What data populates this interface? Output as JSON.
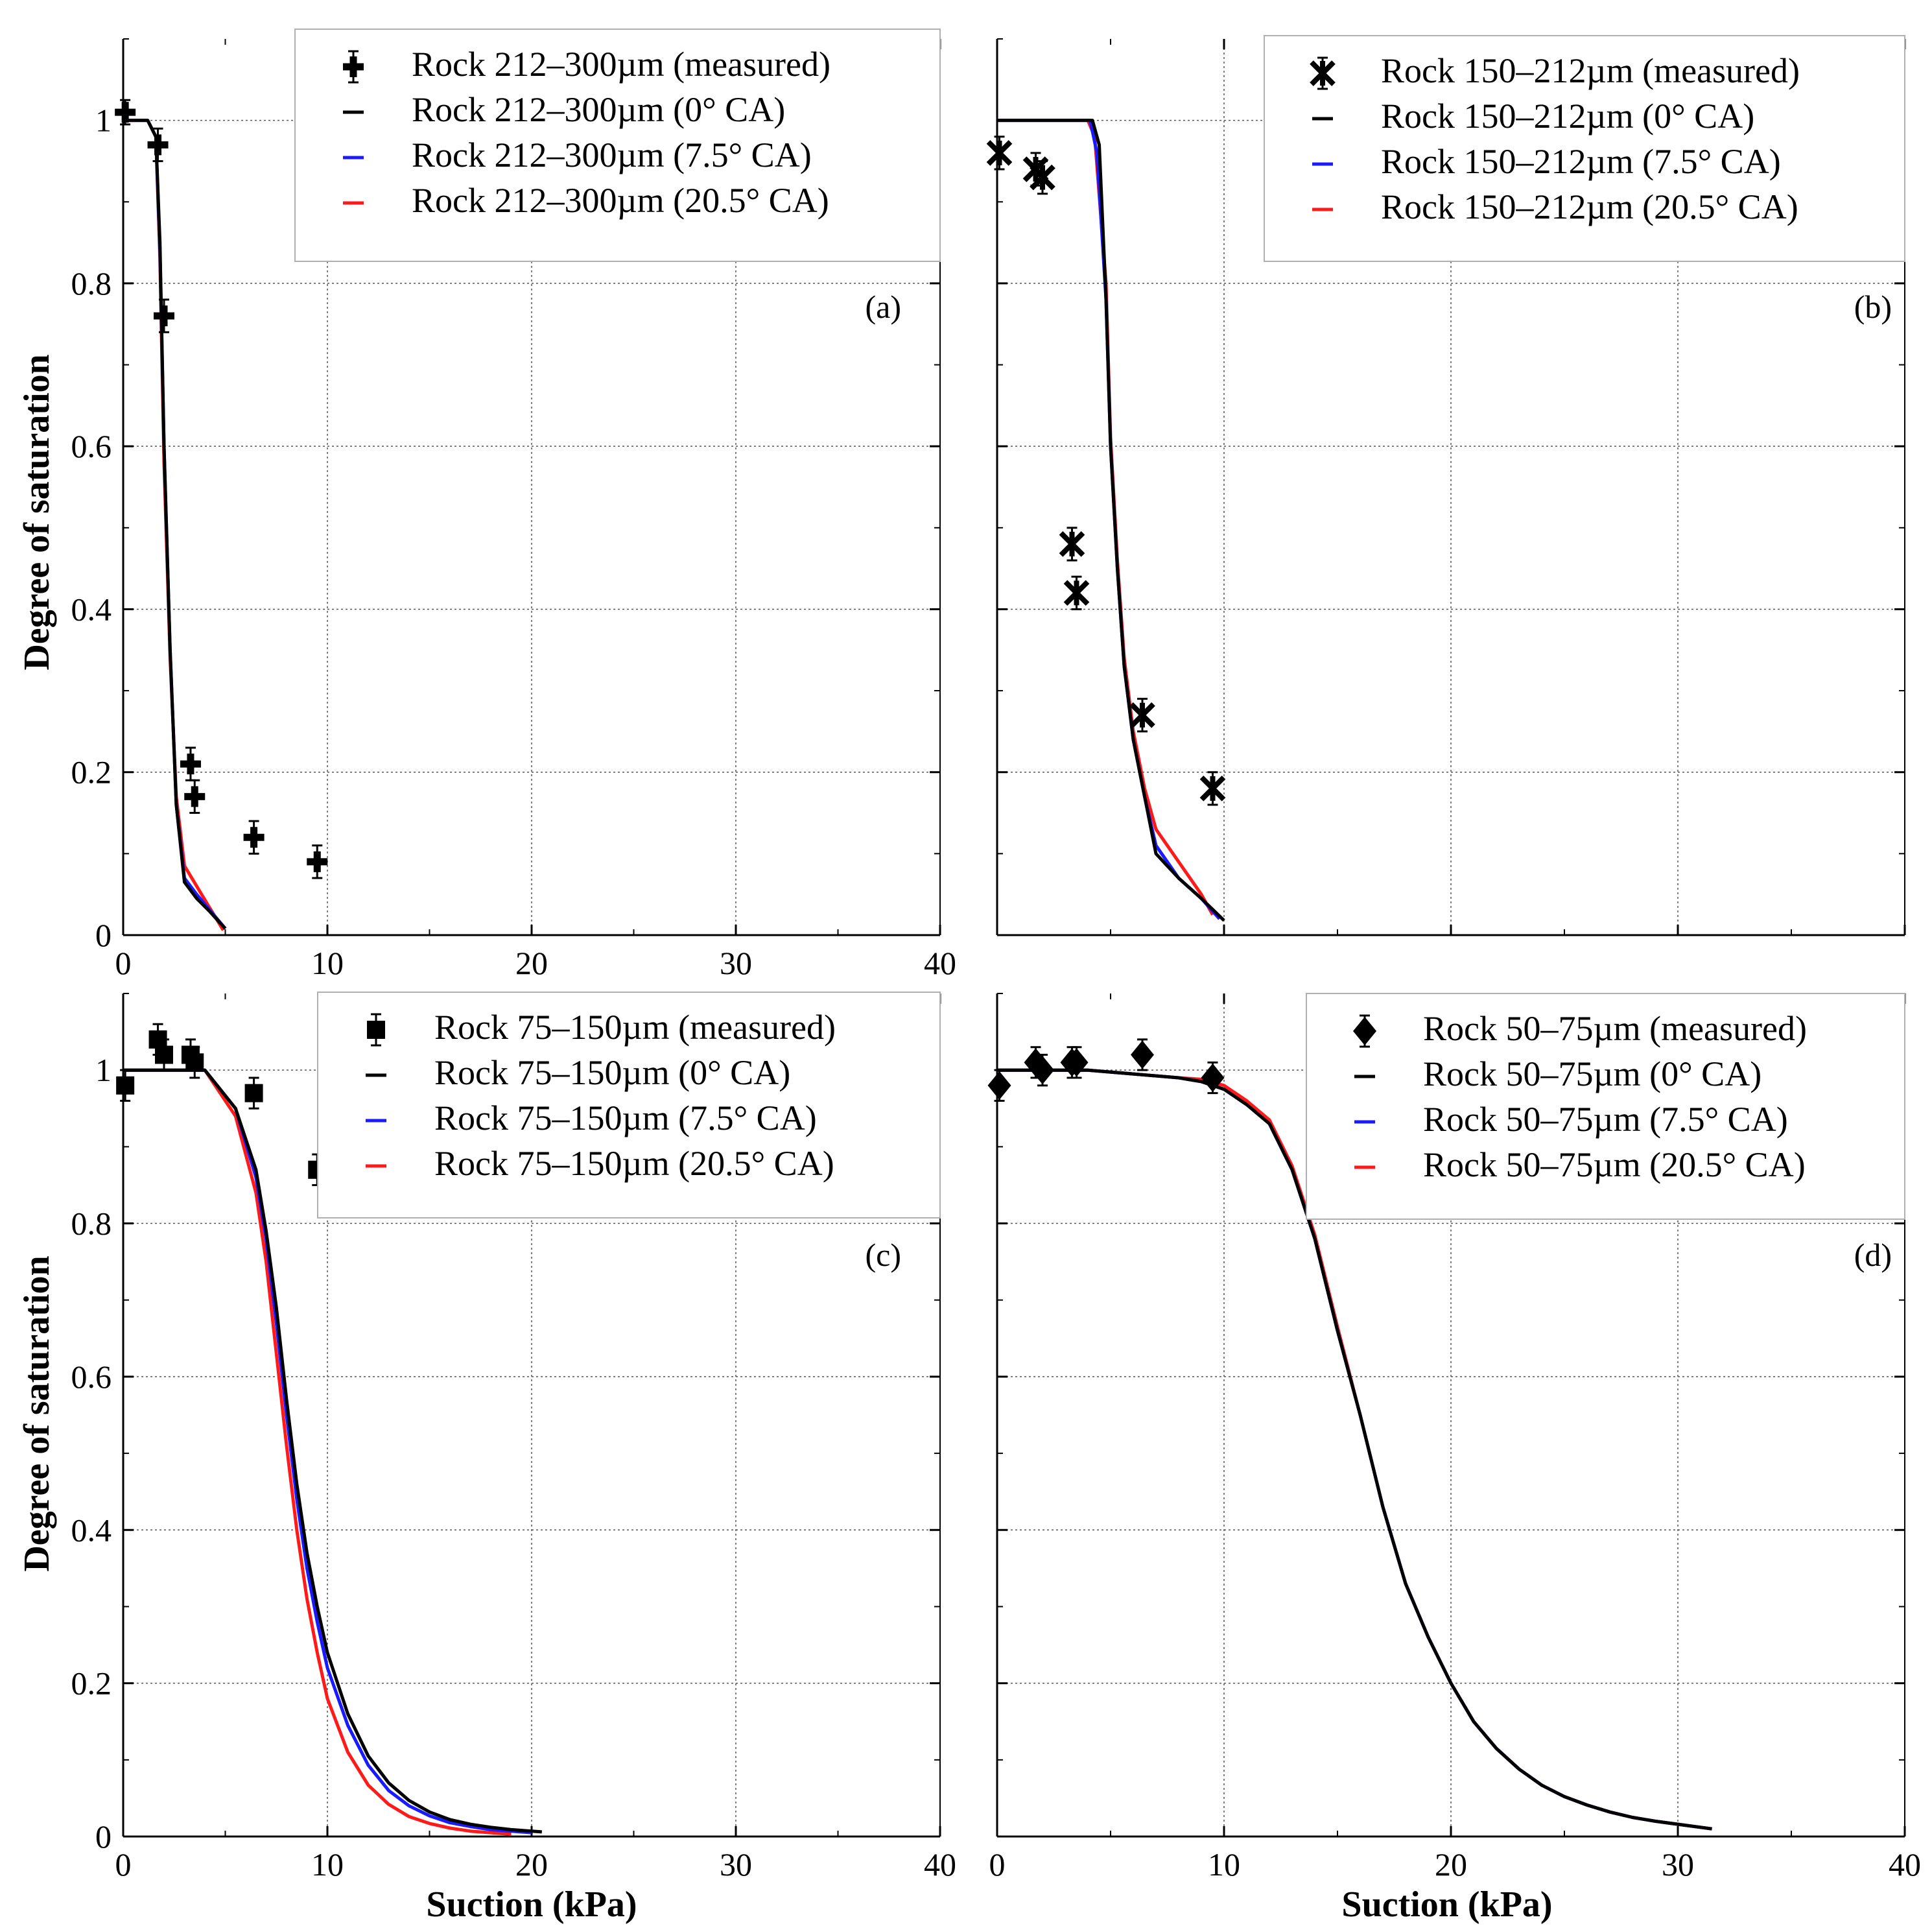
{
  "figure": {
    "ylabel": "Degree of saturation",
    "xlabel": "Suction (kPa)"
  },
  "chart_data": [
    {
      "type": "scatter+line",
      "panel_label": "(a)",
      "xlim": [
        0,
        40
      ],
      "ylim": [
        0,
        1.1
      ],
      "xticks": [
        "0",
        "10",
        "20",
        "30",
        "40"
      ],
      "yticks": [
        "0",
        "0.2",
        "0.4",
        "0.6",
        "0.8",
        "1"
      ],
      "xlabel": "",
      "ylabel": "Degree of saturation",
      "grid": true,
      "legend_position": "top-right",
      "legend": [
        "Rock 212–300µm (measured)",
        "Rock 212–300µm (0° CA)",
        "Rock 212–300µm (7.5° CA)",
        "Rock 212–300µm (20.5° CA)"
      ],
      "measured": {
        "marker": "plus",
        "x": [
          0.1,
          1.7,
          2.0,
          3.3,
          3.5,
          6.4,
          9.5
        ],
        "y": [
          1.01,
          0.97,
          0.76,
          0.21,
          0.17,
          0.12,
          0.09
        ],
        "err": [
          0.015,
          0.02,
          0.02,
          0.02,
          0.02,
          0.02,
          0.02
        ]
      },
      "series": [
        {
          "name": "0° CA",
          "color": "#000000",
          "x": [
            0,
            1.2,
            1.6,
            1.8,
            2.0,
            2.3,
            2.6,
            3.0,
            3.6,
            4.2,
            5.0
          ],
          "y": [
            1.0,
            1.0,
            0.98,
            0.85,
            0.6,
            0.35,
            0.16,
            0.065,
            0.045,
            0.03,
            0.008
          ]
        },
        {
          "name": "7.5° CA",
          "color": "#1a1aff",
          "x": [
            0,
            1.2,
            1.6,
            1.8,
            2.0,
            2.3,
            2.6,
            3.0,
            3.6,
            4.2,
            5.0
          ],
          "y": [
            1.0,
            1.0,
            0.98,
            0.84,
            0.6,
            0.35,
            0.16,
            0.07,
            0.05,
            0.032,
            0.008
          ]
        },
        {
          "name": "20.5° CA",
          "color": "#ff1a1a",
          "x": [
            0,
            1.2,
            1.6,
            1.8,
            2.0,
            2.3,
            2.6,
            3.0,
            3.6,
            4.2,
            4.9
          ],
          "y": [
            1.0,
            1.0,
            0.98,
            0.83,
            0.58,
            0.34,
            0.17,
            0.085,
            0.06,
            0.035,
            0.006
          ]
        }
      ]
    },
    {
      "type": "scatter+line",
      "panel_label": "(b)",
      "xlim": [
        0,
        40
      ],
      "ylim": [
        0,
        1.1
      ],
      "xticks": [],
      "yticks": [],
      "xlabel": "",
      "ylabel": "",
      "grid": true,
      "legend_position": "top-right",
      "legend": [
        "Rock 150–212µm (measured)",
        "Rock 150–212µm (0° CA)",
        "Rock 150–212µm (7.5° CA)",
        "Rock 150–212µm (20.5° CA)"
      ],
      "measured": {
        "marker": "star",
        "x": [
          0.1,
          1.7,
          2.0,
          3.3,
          3.5,
          6.4,
          9.5
        ],
        "y": [
          0.96,
          0.94,
          0.93,
          0.48,
          0.42,
          0.27,
          0.18
        ],
        "err": [
          0.02,
          0.02,
          0.02,
          0.02,
          0.02,
          0.02,
          0.02
        ]
      },
      "series": [
        {
          "name": "0° CA",
          "color": "#000000",
          "x": [
            0,
            4.2,
            4.5,
            4.8,
            5.0,
            5.3,
            5.6,
            6.0,
            6.5,
            7.0,
            8.0,
            9.0,
            10.0
          ],
          "y": [
            1.0,
            1.0,
            0.97,
            0.78,
            0.6,
            0.45,
            0.33,
            0.24,
            0.17,
            0.1,
            0.07,
            0.045,
            0.018
          ]
        },
        {
          "name": "7.5° CA",
          "color": "#1a1aff",
          "x": [
            0,
            4.1,
            4.4,
            4.8,
            5.0,
            5.3,
            5.6,
            6.0,
            6.5,
            7.0,
            8.0,
            9.0,
            9.8
          ],
          "y": [
            1.0,
            1.0,
            0.96,
            0.78,
            0.6,
            0.45,
            0.33,
            0.24,
            0.17,
            0.11,
            0.07,
            0.045,
            0.02
          ]
        },
        {
          "name": "20.5° CA",
          "color": "#ff1a1a",
          "x": [
            0,
            4.0,
            4.3,
            4.8,
            5.0,
            5.3,
            5.6,
            6.0,
            6.5,
            7.0,
            8.0,
            9.0,
            9.5
          ],
          "y": [
            1.0,
            1.0,
            0.98,
            0.8,
            0.61,
            0.46,
            0.34,
            0.25,
            0.18,
            0.13,
            0.09,
            0.05,
            0.025
          ]
        }
      ]
    },
    {
      "type": "scatter+line",
      "panel_label": "(c)",
      "xlim": [
        0,
        40
      ],
      "ylim": [
        0,
        1.1
      ],
      "xticks": [
        "0",
        "10",
        "20",
        "30",
        "40"
      ],
      "yticks": [
        "0",
        "0.2",
        "0.4",
        "0.6",
        "0.8",
        "1"
      ],
      "xlabel": "Suction (kPa)",
      "ylabel": "Degree of saturation",
      "grid": true,
      "legend_position": "top-right",
      "legend": [
        "Rock 75–150µm (measured)",
        "Rock 75–150µm (0° CA)",
        "Rock 75–150µm (7.5° CA)",
        "Rock 75–150µm (20.5° CA)"
      ],
      "measured": {
        "marker": "square",
        "x": [
          0.1,
          1.7,
          2.0,
          3.3,
          3.5,
          6.4,
          9.5
        ],
        "y": [
          0.98,
          1.04,
          1.02,
          1.02,
          1.01,
          0.97,
          0.87
        ],
        "err": [
          0.02,
          0.02,
          0.02,
          0.02,
          0.02,
          0.02,
          0.02
        ]
      },
      "series": [
        {
          "name": "0° CA",
          "color": "#000000",
          "x": [
            0,
            4.0,
            5.5,
            6.5,
            7.0,
            7.5,
            8.0,
            8.5,
            9.0,
            9.5,
            10.0,
            11.0,
            12.0,
            13.0,
            14.0,
            15.0,
            16.0,
            17.0,
            18.0,
            19.0,
            20.0,
            20.5
          ],
          "y": [
            1.0,
            1.0,
            0.95,
            0.87,
            0.79,
            0.69,
            0.57,
            0.46,
            0.37,
            0.3,
            0.24,
            0.16,
            0.105,
            0.07,
            0.047,
            0.032,
            0.022,
            0.016,
            0.012,
            0.009,
            0.007,
            0.006
          ]
        },
        {
          "name": "7.5° CA",
          "color": "#1a1aff",
          "x": [
            0,
            4.0,
            5.5,
            6.5,
            7.0,
            7.5,
            8.0,
            8.5,
            9.0,
            9.5,
            10.0,
            11.0,
            12.0,
            13.0,
            14.0,
            15.0,
            16.0,
            17.0,
            18.0,
            19.0,
            20.0
          ],
          "y": [
            1.0,
            1.0,
            0.95,
            0.86,
            0.78,
            0.67,
            0.55,
            0.44,
            0.35,
            0.28,
            0.22,
            0.145,
            0.093,
            0.06,
            0.04,
            0.027,
            0.018,
            0.013,
            0.009,
            0.007,
            0.005
          ]
        },
        {
          "name": "20.5° CA",
          "color": "#ff1a1a",
          "x": [
            0,
            4.0,
            5.5,
            6.5,
            7.0,
            7.5,
            8.0,
            8.5,
            9.0,
            9.5,
            10.0,
            11.0,
            12.0,
            13.0,
            14.0,
            15.0,
            16.0,
            17.0,
            18.0,
            19.0
          ],
          "y": [
            1.0,
            1.0,
            0.94,
            0.84,
            0.75,
            0.63,
            0.51,
            0.4,
            0.31,
            0.24,
            0.18,
            0.11,
            0.067,
            0.042,
            0.026,
            0.017,
            0.011,
            0.007,
            0.005,
            0.003
          ]
        }
      ]
    },
    {
      "type": "scatter+line",
      "panel_label": "(d)",
      "xlim": [
        0,
        40
      ],
      "ylim": [
        0,
        1.1
      ],
      "xticks": [
        "0",
        "10",
        "20",
        "30",
        "40"
      ],
      "yticks": [],
      "xlabel": "Suction (kPa)",
      "ylabel": "",
      "grid": true,
      "legend_position": "top-right",
      "legend": [
        "Rock 50–75µm (measured)",
        "Rock 50–75µm (0° CA)",
        "Rock 50–75µm (7.5° CA)",
        "Rock 50–75µm (20.5° CA)"
      ],
      "measured": {
        "marker": "diamond",
        "x": [
          0.1,
          1.7,
          2.0,
          3.3,
          3.5,
          6.4,
          9.5
        ],
        "y": [
          0.98,
          1.01,
          1.0,
          1.01,
          1.01,
          1.02,
          0.99
        ],
        "err": [
          0.02,
          0.02,
          0.02,
          0.02,
          0.02,
          0.02,
          0.02
        ]
      },
      "series": [
        {
          "name": "0° CA",
          "color": "#000000",
          "x": [
            0,
            4,
            6,
            8,
            9,
            10,
            11,
            12,
            13,
            14,
            15,
            16,
            17,
            18,
            19,
            20,
            21,
            22,
            23,
            24,
            25,
            26,
            27,
            28,
            29,
            30,
            31.5
          ],
          "y": [
            1.0,
            1.0,
            0.995,
            0.99,
            0.985,
            0.975,
            0.955,
            0.93,
            0.87,
            0.78,
            0.66,
            0.55,
            0.43,
            0.33,
            0.26,
            0.2,
            0.15,
            0.115,
            0.088,
            0.067,
            0.052,
            0.041,
            0.032,
            0.025,
            0.02,
            0.016,
            0.01
          ]
        },
        {
          "name": "7.5° CA",
          "color": "#1a1aff",
          "x": [
            0,
            4,
            6,
            8,
            9,
            10,
            11,
            12,
            13,
            14,
            15,
            16,
            17,
            18,
            19,
            20,
            21,
            22,
            23,
            24,
            25,
            26,
            27,
            28,
            29,
            30,
            31.5
          ],
          "y": [
            1.0,
            1.0,
            0.995,
            0.99,
            0.985,
            0.975,
            0.955,
            0.93,
            0.87,
            0.78,
            0.66,
            0.55,
            0.43,
            0.33,
            0.26,
            0.2,
            0.15,
            0.115,
            0.088,
            0.067,
            0.052,
            0.041,
            0.032,
            0.025,
            0.02,
            0.016,
            0.01
          ]
        },
        {
          "name": "20.5° CA",
          "color": "#ff1a1a",
          "x": [
            0,
            4,
            6,
            8,
            9,
            10,
            11,
            12,
            13,
            14,
            15,
            16,
            17,
            18,
            19,
            20,
            21,
            22,
            23,
            24,
            25,
            26,
            27,
            28,
            29,
            30,
            31.5
          ],
          "y": [
            1.0,
            1.0,
            0.995,
            0.99,
            0.988,
            0.98,
            0.96,
            0.935,
            0.875,
            0.785,
            0.665,
            0.55,
            0.43,
            0.33,
            0.26,
            0.2,
            0.15,
            0.115,
            0.088,
            0.067,
            0.052,
            0.041,
            0.032,
            0.025,
            0.02,
            0.016,
            0.01
          ]
        }
      ]
    }
  ]
}
